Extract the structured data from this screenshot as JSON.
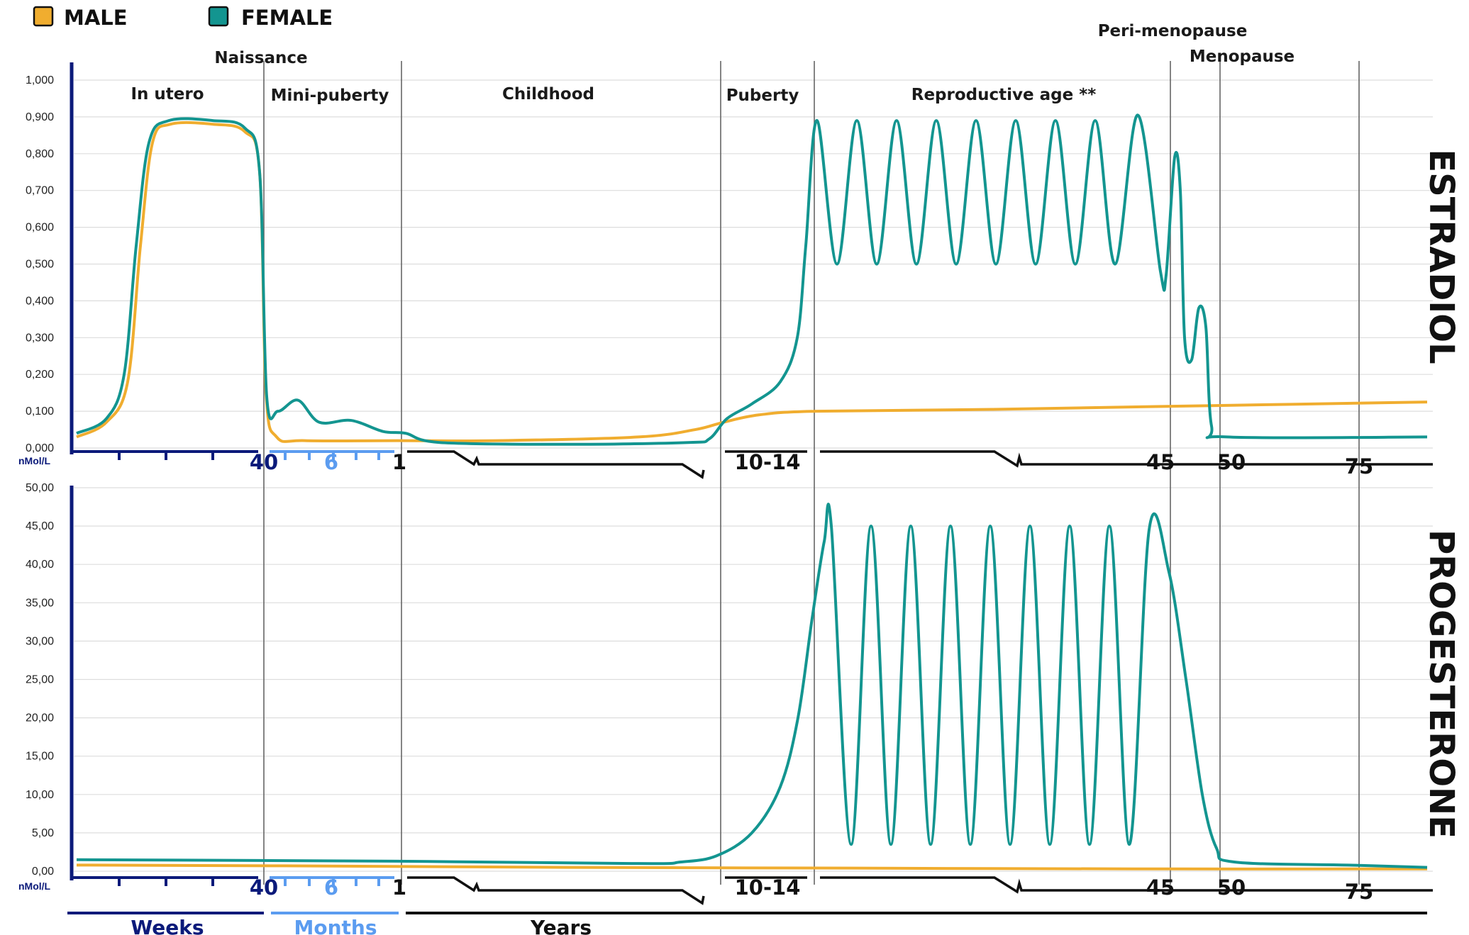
{
  "colors": {
    "male": "#f0ad2f",
    "female": "#139590",
    "weeks": "#0b1a7a",
    "months": "#5b9cf0",
    "years": "#111111",
    "grid": "#dddddd",
    "divider": "#666666"
  },
  "legend": [
    {
      "key": "male",
      "label": "MALE"
    },
    {
      "key": "female",
      "label": "FEMALE"
    }
  ],
  "stages": [
    "In utero",
    "Naissance",
    "Mini-puberty",
    "Childhood",
    "Puberty",
    "Reproductive age **",
    "Peri-menopause",
    "Menopause"
  ],
  "timeline_labels": {
    "weeks": "Weeks",
    "months": "Months",
    "years": "Years"
  },
  "x_tick_labels": {
    "weeks_end": "40",
    "months_mid": "6",
    "one_year": "1",
    "puberty": "10-14",
    "age45": "45",
    "age50": "50",
    "age75": "75"
  },
  "chart_data": [
    {
      "type": "line",
      "title": "ESTRADIOL",
      "ylabel": "nMol/L",
      "ylim": [
        0,
        1.0
      ],
      "yticks": [
        "0,000",
        "0,100",
        "0,200",
        "0,300",
        "0,400",
        "0,500",
        "0,600",
        "0,700",
        "0,800",
        "0,900",
        "1,000"
      ],
      "x_scale": "piecewise: weeks (in utero) | months | years, with axis breaks",
      "series": [
        {
          "name": "MALE",
          "points": [
            [
              "in utero, early",
              0.03
            ],
            [
              "in utero, mid",
              0.88
            ],
            [
              "birth (40 weeks)",
              0.87
            ],
            [
              "1 month",
              0.02
            ],
            [
              "1 year",
              0.02
            ],
            [
              "childhood",
              0.02
            ],
            [
              "10-14 years",
              0.07
            ],
            [
              "adult",
              0.1
            ],
            [
              "75+ years",
              0.125
            ]
          ]
        },
        {
          "name": "FEMALE",
          "points": [
            [
              "in utero, early",
              0.04
            ],
            [
              "in utero, mid",
              0.89
            ],
            [
              "birth (40 weeks)",
              0.87
            ],
            [
              "1 month",
              0.11
            ],
            [
              "2 months",
              0.13
            ],
            [
              "4 months",
              0.07
            ],
            [
              "1 year",
              0.04
            ],
            [
              "childhood",
              0.01
            ],
            [
              "10-14 years",
              0.1
            ],
            [
              "reproductive peaks",
              0.9
            ],
            [
              "reproductive troughs",
              0.5
            ],
            [
              "45 years",
              0.47
            ],
            [
              "peri-menopause peak",
              0.79
            ],
            [
              "peri-menopause peak 2",
              0.38
            ],
            [
              "50 years",
              0.03
            ],
            [
              "75+ years",
              0.03
            ]
          ]
        }
      ]
    },
    {
      "type": "line",
      "title": "PROGESTERONE",
      "ylabel": "nMol/L",
      "ylim": [
        0,
        50
      ],
      "yticks": [
        "0,00",
        "5,00",
        "10,00",
        "15,00",
        "20,00",
        "25,00",
        "30,00",
        "35,00",
        "40,00",
        "45,00",
        "50,00"
      ],
      "series": [
        {
          "name": "MALE",
          "points": [
            [
              "in utero",
              0.8
            ],
            [
              "1 year",
              0.6
            ],
            [
              "childhood",
              0.5
            ],
            [
              "adult",
              0.3
            ],
            [
              "75+ years",
              0.3
            ]
          ]
        },
        {
          "name": "FEMALE",
          "points": [
            [
              "in utero",
              1.5
            ],
            [
              "1 year",
              1.3
            ],
            [
              "childhood",
              1.0
            ],
            [
              "10-14 years",
              1.5
            ],
            [
              "reproductive peaks",
              45
            ],
            [
              "reproductive troughs",
              4
            ],
            [
              "45 years",
              44
            ],
            [
              "50 years",
              1.5
            ],
            [
              "75+ years",
              0.5
            ]
          ]
        }
      ]
    }
  ]
}
